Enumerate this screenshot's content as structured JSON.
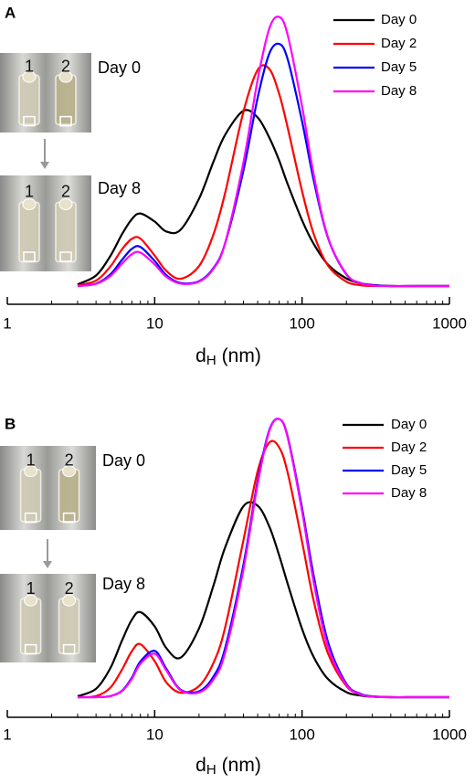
{
  "chart_data": [
    {
      "type": "line",
      "panel": "A",
      "xlabel": {
        "main": "d",
        "sub": "H",
        "unit": "(nm)"
      },
      "log_x": true,
      "xlim": [
        1,
        1000
      ],
      "xticks": [
        1,
        10,
        100,
        1000
      ],
      "xminorticks": [
        2,
        3,
        4,
        5,
        6,
        7,
        8,
        9,
        20,
        30,
        40,
        50,
        60,
        70,
        80,
        90,
        200,
        300,
        400,
        500,
        600,
        700,
        800,
        900
      ],
      "ylim": [
        0,
        100
      ],
      "legend": "top-right",
      "photos": [
        {
          "vials": [
            "1",
            "2"
          ],
          "caption": "Day 0"
        },
        {
          "vials": [
            "1",
            "2"
          ],
          "caption": "Day 8"
        }
      ],
      "x": [
        3,
        4,
        5,
        6,
        7,
        8,
        10,
        12,
        15,
        20,
        25,
        30,
        40,
        50,
        60,
        70,
        80,
        100,
        120,
        150,
        200,
        250,
        300,
        400,
        600,
        1000
      ],
      "series": [
        {
          "name": "Day 0",
          "color": "#000000",
          "values": [
            0.6,
            3.9,
            11.1,
            19.2,
            24.8,
            26.9,
            23.9,
            20.2,
            20.9,
            32.4,
            46,
            56,
            65,
            62.5,
            55,
            46.5,
            37.7,
            24.4,
            15.6,
            7.9,
            2.8,
            1,
            0.4,
            0,
            0,
            0
          ]
        },
        {
          "name": "Day 2",
          "color": "#ff0000",
          "values": [
            0.2,
            2,
            7.2,
            13.6,
            17.5,
            17.6,
            11.3,
            5.6,
            2.7,
            7.4,
            19,
            34.3,
            64.6,
            80.2,
            80.5,
            71.2,
            58.6,
            35.2,
            19.3,
            7.6,
            1.6,
            0.3,
            0,
            0,
            0,
            0
          ]
        },
        {
          "name": "Day 5",
          "color": "#0000ff",
          "values": [
            0,
            0.9,
            4.3,
            9.7,
            13.8,
            14.5,
            9.3,
            4,
            1.1,
            1.8,
            6.6,
            15.7,
            42.8,
            69.9,
            86.3,
            89.8,
            84,
            61.1,
            39.2,
            17.8,
            4.3,
            1.1,
            0.3,
            0,
            0,
            0
          ]
        },
        {
          "name": "Day 8",
          "color": "#ff00ff",
          "values": [
            0,
            0.8,
            3.7,
            8.3,
            11.8,
            12.4,
            8,
            3.4,
            0.9,
            1.6,
            6.3,
            15.8,
            45.8,
            76.6,
            95.6,
            99.8,
            93,
            66.7,
            41.3,
            18,
            4.4,
            1,
            0.2,
            0,
            0,
            0
          ]
        }
      ]
    },
    {
      "type": "line",
      "panel": "B",
      "xlabel": {
        "main": "d",
        "sub": "H",
        "unit": "(nm)"
      },
      "log_x": true,
      "xlim": [
        1,
        1000
      ],
      "xticks": [
        1,
        10,
        100,
        1000
      ],
      "xminorticks": [
        2,
        3,
        4,
        5,
        6,
        7,
        8,
        9,
        20,
        30,
        40,
        50,
        60,
        70,
        80,
        90,
        200,
        300,
        400,
        500,
        600,
        700,
        800,
        900
      ],
      "ylim": [
        0,
        100
      ],
      "legend": "top-right",
      "photos": [
        {
          "vials": [
            "1",
            "2"
          ],
          "caption": "Day 0"
        },
        {
          "vials": [
            "1",
            "2"
          ],
          "caption": "Day 8"
        }
      ],
      "x": [
        3,
        4,
        5,
        6,
        7,
        8,
        10,
        12,
        15,
        20,
        25,
        30,
        40,
        50,
        60,
        70,
        80,
        100,
        120,
        150,
        200,
        250,
        300,
        400,
        600,
        1000
      ],
      "series": [
        {
          "name": "Day 0",
          "color": "#000000",
          "values": [
            0.3,
            3,
            10.4,
            20.3,
            27.8,
            30.5,
            25.4,
            17.6,
            14.2,
            24.7,
            39.9,
            53.6,
            68.5,
            68.7,
            61.2,
            50.8,
            40.6,
            24.5,
            14.4,
            6.5,
            1.8,
            0.6,
            0.2,
            0,
            0,
            0
          ]
        },
        {
          "name": "Day 2",
          "color": "#ff0000",
          "values": [
            0,
            0.4,
            3.4,
            9.9,
            16.5,
            19,
            12.9,
            5.3,
            1.6,
            4,
            12.2,
            24.8,
            56.3,
            81.1,
            91.4,
            89.6,
            80.4,
            55.8,
            34.5,
            15.7,
            4,
            1,
            0.3,
            0,
            0,
            0
          ]
        },
        {
          "name": "Day 5",
          "color": "#0000ff",
          "values": [
            0,
            0,
            0.4,
            2.3,
            7,
            12.8,
            16.6,
            10.2,
            2.7,
            2.1,
            7.3,
            17.4,
            47.5,
            77.7,
            95.9,
            99.8,
            93.4,
            67.9,
            43.5,
            19.8,
            4.8,
            1.2,
            0.3,
            0,
            0,
            0
          ]
        },
        {
          "name": "Day 8",
          "color": "#ff00ff",
          "values": [
            0,
            0,
            0.4,
            2.2,
            6.6,
            12,
            15.6,
            9.6,
            2.5,
            1.7,
            6.3,
            15.8,
            45.8,
            76.6,
            95.6,
            99.8,
            93,
            66.7,
            41.3,
            18,
            4.4,
            1,
            0.2,
            0,
            0,
            0
          ]
        }
      ]
    }
  ]
}
